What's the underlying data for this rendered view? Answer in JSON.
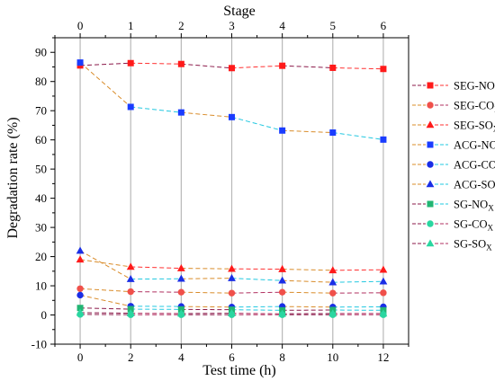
{
  "chart_data": {
    "type": "scatter",
    "xlabel": "Test time (h)",
    "ylabel": "Degradation rate (%)",
    "top_axis_title": "Stage",
    "x": [
      0,
      2,
      4,
      6,
      8,
      10,
      12
    ],
    "top_ticks": [
      "0",
      "1",
      "2",
      "3",
      "4",
      "5",
      "6"
    ],
    "xlim": [
      -1,
      13
    ],
    "ylim": [
      -10,
      95
    ],
    "xticks": [
      0,
      2,
      4,
      6,
      8,
      10,
      12
    ],
    "yticks": [
      -10,
      0,
      10,
      20,
      30,
      40,
      50,
      60,
      70,
      80,
      90
    ],
    "grid": "vertical lines at stages",
    "legend_position": "right",
    "series": [
      {
        "name": "SEG-NO",
        "sub": "X",
        "color": "#ff1a1a",
        "marker": "square",
        "line_colors": [
          "#8b1a4a",
          "#ff3030"
        ],
        "values": [
          85.5,
          86.3,
          86.0,
          84.6,
          85.4,
          84.7,
          84.3
        ]
      },
      {
        "name": "SEG-CO",
        "sub": "X",
        "color": "#f0504a",
        "marker": "circle",
        "line_colors": [
          "#d98c2a",
          "#b03060"
        ],
        "values": [
          9.0,
          8.0,
          7.8,
          7.5,
          7.8,
          7.5,
          7.6
        ]
      },
      {
        "name": "SEG-SO",
        "sub": "X",
        "color": "#ff1a1a",
        "marker": "triangle",
        "line_colors": [
          "#d98c2a",
          "#ff3030"
        ],
        "values": [
          19.0,
          16.5,
          16.0,
          15.8,
          15.7,
          15.3,
          15.5
        ]
      },
      {
        "name": "ACG-NO",
        "sub": "X",
        "color": "#1a3cff",
        "marker": "square",
        "line_colors": [
          "#d98c2a",
          "#22c8e0"
        ],
        "values": [
          86.5,
          71.3,
          69.4,
          67.8,
          63.2,
          62.5,
          60.1
        ]
      },
      {
        "name": "ACG-CO",
        "sub": "X",
        "color": "#1a2ee6",
        "marker": "circle",
        "line_colors": [
          "#d98c2a",
          "#22c8e0"
        ],
        "values": [
          6.8,
          3.0,
          2.9,
          2.7,
          2.9,
          2.7,
          2.8
        ]
      },
      {
        "name": "ACG-SO",
        "sub": "X",
        "color": "#1a2ee6",
        "marker": "triangle",
        "line_colors": [
          "#d98c2a",
          "#22c8e0"
        ],
        "values": [
          22.0,
          12.3,
          12.4,
          12.6,
          11.8,
          11.2,
          11.5
        ]
      },
      {
        "name": "SG-NO",
        "sub": "X",
        "color": "#22b573",
        "marker": "square",
        "line_colors": [
          "#8b1a4a",
          "#22c8e0"
        ],
        "values": [
          2.4,
          2.0,
          1.9,
          1.8,
          1.6,
          1.7,
          1.6
        ]
      },
      {
        "name": "SG-CO",
        "sub": "X",
        "color": "#2ad6a0",
        "marker": "circle",
        "line_colors": [
          "#8b1a4a",
          "#b03060"
        ],
        "values": [
          0.2,
          0.1,
          0.1,
          0.1,
          0.1,
          0.1,
          0.1
        ]
      },
      {
        "name": "SG-SO",
        "sub": "X",
        "color": "#2ad6a0",
        "marker": "triangle",
        "line_colors": [
          "#8b1a4a",
          "#b03060"
        ],
        "values": [
          0.8,
          0.6,
          0.5,
          0.6,
          0.4,
          0.5,
          0.5
        ]
      }
    ]
  }
}
